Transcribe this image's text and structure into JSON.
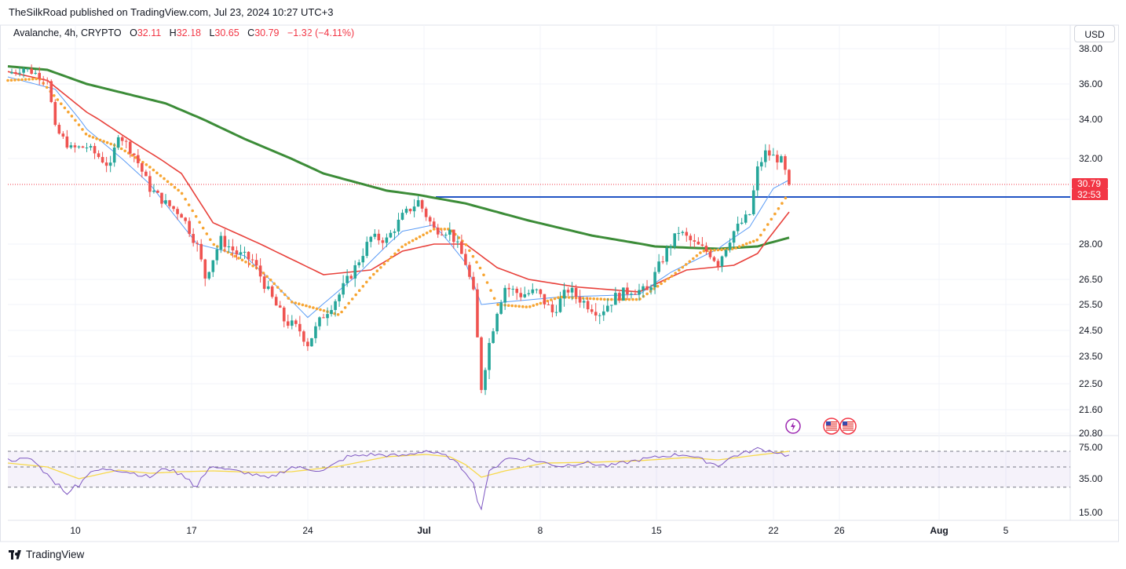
{
  "header": {
    "published": "TheSilkRoad published on TradingView.com, Jul 23, 2024 10:27 UTC+3"
  },
  "legend": {
    "symbol": "Avalanche, 4h, CRYPTO",
    "o_key": "O",
    "o_val": "32.11",
    "h_key": "H",
    "h_val": "32.18",
    "l_key": "L",
    "l_val": "30.65",
    "c_key": "C",
    "c_val": "30.79",
    "change": "−1.32 (−4.11%)"
  },
  "currency_button": "USD",
  "footer": {
    "brand": "TradingView"
  },
  "price_badges": {
    "last": "30.79",
    "countdown": "32:53"
  },
  "colors": {
    "up": "#26a69a",
    "down": "#ef5350",
    "ema_fast": "#5b9cf6",
    "sma_orange": "#f7a532",
    "ema_red": "#e8413b",
    "sma_green": "#3c8c38",
    "support": "#2154c4",
    "rsi": "#7e57c2",
    "rsi_ma": "#f7d94c",
    "badge": "#f23645"
  },
  "events": [
    {
      "icon": "lightning-icon"
    },
    {
      "icon": "us-flag-icon"
    },
    {
      "icon": "us-flag-icon"
    }
  ],
  "chart_data": [
    {
      "type": "candlestick",
      "title": "Avalanche, 4h, CRYPTO",
      "y_ticks": [
        "38.00",
        "36.00",
        "34.00",
        "32.00",
        "28.00",
        "26.50",
        "25.50",
        "24.50",
        "23.50",
        "22.50",
        "21.60",
        "20.80"
      ],
      "x_ticks": [
        "10",
        "17",
        "24",
        "Jul",
        "8",
        "15",
        "22",
        "26",
        "Aug",
        "5"
      ],
      "ylim": [
        20.8,
        38.0
      ],
      "support_level": 30.2,
      "last_price": 30.79,
      "price_path": [
        [
          0,
          36.6
        ],
        [
          2,
          36.9
        ],
        [
          5,
          36.3
        ],
        [
          6,
          33.5
        ],
        [
          8,
          32.5
        ],
        [
          10,
          32.6
        ],
        [
          13,
          31.6
        ],
        [
          14,
          33.3
        ],
        [
          16,
          32.2
        ],
        [
          18,
          30.6
        ],
        [
          20,
          29.9
        ],
        [
          22,
          29.4
        ],
        [
          24,
          27.9
        ],
        [
          25,
          26.6
        ],
        [
          27,
          28.2
        ],
        [
          29,
          27.6
        ],
        [
          31,
          27.3
        ],
        [
          33,
          26.0
        ],
        [
          35,
          24.9
        ],
        [
          37,
          24.5
        ],
        [
          38,
          24.0
        ],
        [
          40,
          25.1
        ],
        [
          42,
          25.9
        ],
        [
          44,
          27.0
        ],
        [
          46,
          28.3
        ],
        [
          48,
          28.2
        ],
        [
          50,
          29.3
        ],
        [
          52,
          30.0
        ],
        [
          54,
          28.7
        ],
        [
          56,
          28.6
        ],
        [
          58,
          27.2
        ],
        [
          59,
          25.9
        ],
        [
          60,
          22.4
        ],
        [
          61,
          24.0
        ],
        [
          62,
          25.3
        ],
        [
          63,
          26.2
        ],
        [
          65,
          25.9
        ],
        [
          67,
          26.0
        ],
        [
          69,
          25.2
        ],
        [
          71,
          26.1
        ],
        [
          73,
          25.6
        ],
        [
          75,
          25.2
        ],
        [
          77,
          25.8
        ],
        [
          79,
          26.1
        ],
        [
          81,
          26.0
        ],
        [
          83,
          27.4
        ],
        [
          85,
          28.6
        ],
        [
          87,
          28.0
        ],
        [
          89,
          27.6
        ],
        [
          90,
          27.2
        ],
        [
          92,
          28.6
        ],
        [
          94,
          29.4
        ],
        [
          95,
          31.5
        ],
        [
          96,
          32.3
        ],
        [
          97,
          32.1
        ],
        [
          98,
          31.9
        ],
        [
          99,
          30.79
        ]
      ],
      "ema20_fast": [
        [
          0,
          36.4
        ],
        [
          6,
          35.7
        ],
        [
          10,
          33.5
        ],
        [
          18,
          30.8
        ],
        [
          24,
          28.0
        ],
        [
          30,
          27.5
        ],
        [
          38,
          25.0
        ],
        [
          44,
          26.6
        ],
        [
          50,
          28.6
        ],
        [
          54,
          28.9
        ],
        [
          58,
          27.2
        ],
        [
          60,
          25.5
        ],
        [
          63,
          25.6
        ],
        [
          70,
          25.8
        ],
        [
          80,
          25.9
        ],
        [
          84,
          26.8
        ],
        [
          90,
          27.8
        ],
        [
          94,
          28.8
        ],
        [
          97,
          30.6
        ],
        [
          99,
          31.0
        ]
      ],
      "sma_orange": [
        [
          0,
          36.2
        ],
        [
          4,
          36.3
        ],
        [
          10,
          33.2
        ],
        [
          14,
          32.6
        ],
        [
          18,
          31.6
        ],
        [
          22,
          30.4
        ],
        [
          26,
          28.0
        ],
        [
          32,
          26.9
        ],
        [
          36,
          25.6
        ],
        [
          42,
          25.1
        ],
        [
          46,
          26.6
        ],
        [
          50,
          27.9
        ],
        [
          54,
          28.7
        ],
        [
          56,
          28.7
        ],
        [
          58,
          28.0
        ],
        [
          60,
          26.9
        ],
        [
          62,
          25.5
        ],
        [
          66,
          25.4
        ],
        [
          70,
          25.8
        ],
        [
          76,
          25.7
        ],
        [
          80,
          25.7
        ],
        [
          84,
          26.6
        ],
        [
          88,
          27.7
        ],
        [
          92,
          27.8
        ],
        [
          95,
          28.2
        ],
        [
          99,
          30.4
        ]
      ],
      "ema50_red": [
        [
          0,
          36.7
        ],
        [
          5,
          36.2
        ],
        [
          10,
          34.4
        ],
        [
          16,
          32.8
        ],
        [
          22,
          31.3
        ],
        [
          26,
          29.0
        ],
        [
          32,
          28.0
        ],
        [
          40,
          26.7
        ],
        [
          46,
          26.9
        ],
        [
          50,
          27.7
        ],
        [
          54,
          28.0
        ],
        [
          58,
          28.0
        ],
        [
          62,
          27.0
        ],
        [
          66,
          26.5
        ],
        [
          72,
          26.2
        ],
        [
          80,
          26.0
        ],
        [
          86,
          26.9
        ],
        [
          92,
          27.1
        ],
        [
          95,
          27.6
        ],
        [
          99,
          29.5
        ]
      ],
      "sma200_green": [
        [
          0,
          37.0
        ],
        [
          5,
          36.8
        ],
        [
          10,
          36.0
        ],
        [
          20,
          34.9
        ],
        [
          30,
          33.0
        ],
        [
          40,
          31.3
        ],
        [
          48,
          30.5
        ],
        [
          52,
          30.3
        ],
        [
          58,
          29.9
        ],
        [
          66,
          29.1
        ],
        [
          74,
          28.4
        ],
        [
          82,
          27.9
        ],
        [
          90,
          27.8
        ],
        [
          95,
          27.9
        ],
        [
          99,
          28.3
        ]
      ]
    },
    {
      "type": "line",
      "title": "RSI",
      "y_ticks": [
        "75.00",
        "35.00",
        "15.00"
      ],
      "upper_band": 70,
      "lower_band": 30,
      "ylim": [
        15,
        78
      ],
      "rsi": [
        [
          0,
          59
        ],
        [
          3,
          60
        ],
        [
          5,
          40
        ],
        [
          7,
          27
        ],
        [
          9,
          32
        ],
        [
          11,
          45
        ],
        [
          13,
          48
        ],
        [
          16,
          42
        ],
        [
          18,
          37
        ],
        [
          20,
          49
        ],
        [
          22,
          40
        ],
        [
          24,
          30
        ],
        [
          26,
          52
        ],
        [
          28,
          46
        ],
        [
          30,
          43
        ],
        [
          33,
          35
        ],
        [
          36,
          50
        ],
        [
          40,
          45
        ],
        [
          43,
          63
        ],
        [
          46,
          66
        ],
        [
          50,
          64
        ],
        [
          53,
          71
        ],
        [
          56,
          62
        ],
        [
          58,
          44
        ],
        [
          59,
          31
        ],
        [
          60,
          17
        ],
        [
          61,
          43
        ],
        [
          63,
          61
        ],
        [
          66,
          60
        ],
        [
          70,
          51
        ],
        [
          73,
          56
        ],
        [
          76,
          51
        ],
        [
          80,
          59
        ],
        [
          84,
          65
        ],
        [
          86,
          66
        ],
        [
          88,
          59
        ],
        [
          90,
          52
        ],
        [
          92,
          64
        ],
        [
          95,
          73
        ],
        [
          97,
          70
        ],
        [
          99,
          64
        ]
      ],
      "rsi_ma": [
        [
          0,
          55
        ],
        [
          5,
          50
        ],
        [
          9,
          35
        ],
        [
          14,
          46
        ],
        [
          18,
          42
        ],
        [
          22,
          44
        ],
        [
          26,
          45
        ],
        [
          32,
          43
        ],
        [
          36,
          44
        ],
        [
          42,
          51
        ],
        [
          48,
          63
        ],
        [
          53,
          66
        ],
        [
          56,
          63
        ],
        [
          58,
          53
        ],
        [
          60,
          37
        ],
        [
          63,
          45
        ],
        [
          68,
          55
        ],
        [
          74,
          56
        ],
        [
          80,
          58
        ],
        [
          86,
          62
        ],
        [
          90,
          59
        ],
        [
          94,
          64
        ],
        [
          99,
          70
        ]
      ]
    }
  ]
}
